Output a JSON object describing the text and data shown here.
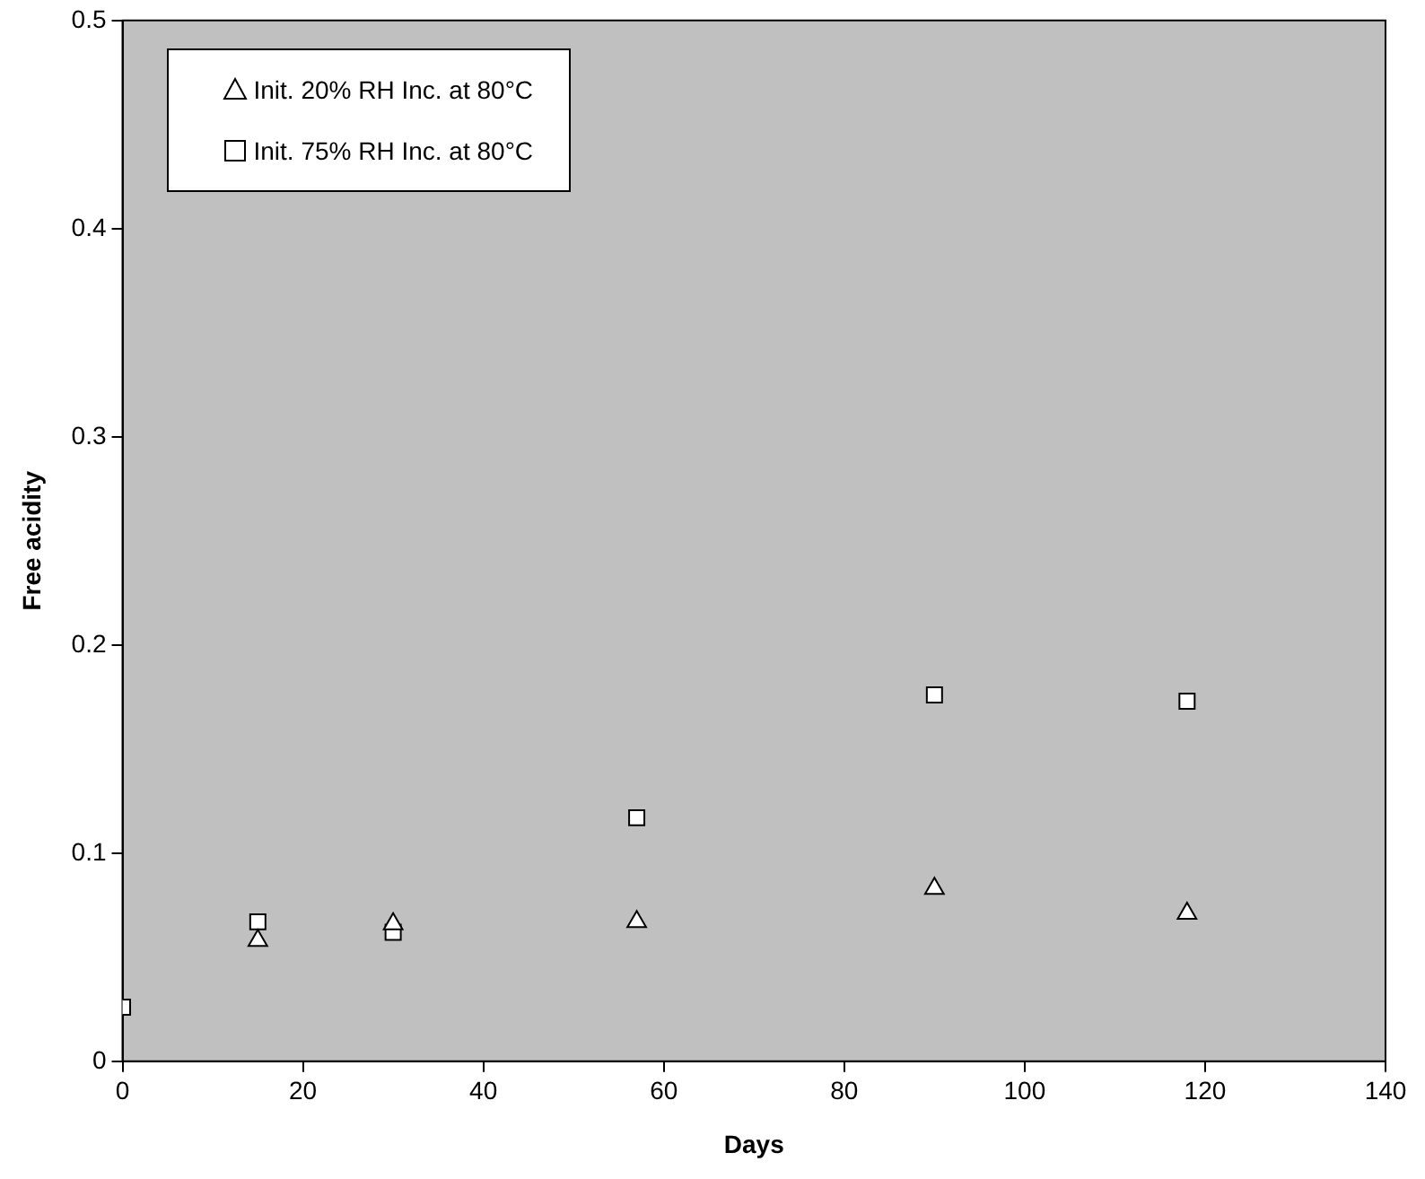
{
  "chart_data": {
    "type": "scatter",
    "xlabel": "Days",
    "ylabel": "Free acidity",
    "xlim": [
      0,
      140
    ],
    "xticks": [
      0,
      20,
      40,
      60,
      80,
      100,
      120,
      140
    ],
    "ylim": [
      0,
      0.5
    ],
    "yticks": [
      0,
      0.1,
      0.2,
      0.3,
      0.4,
      0.5
    ],
    "grid": false,
    "legend": "top left",
    "series": [
      {
        "name": "Init. 20% RH Inc. at 80°C",
        "color": "#000000",
        "marker": "triangle",
        "x": [
          15,
          30,
          57,
          90,
          118
        ],
        "values": [
          0.058,
          0.066,
          0.067,
          0.083,
          0.071
        ]
      },
      {
        "name": "Init. 75% RH Inc. at 80°C",
        "color": "#000000",
        "marker": "square",
        "x": [
          0,
          15,
          30,
          57,
          90,
          118
        ],
        "values": [
          0.026,
          0.067,
          0.062,
          0.117,
          0.176,
          0.173
        ]
      }
    ]
  }
}
